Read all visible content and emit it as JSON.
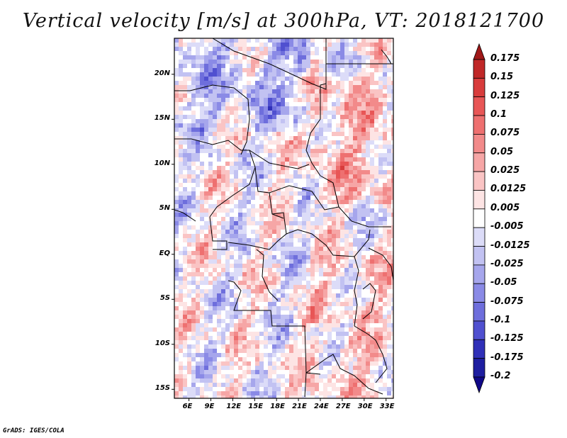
{
  "title": "Vertical velocity [m/s] at 300hPa, VT: 2018121700",
  "map": {
    "lat_ticks": [
      "20N",
      "15N",
      "10N",
      "5N",
      "EQ",
      "5S",
      "10S",
      "15S"
    ],
    "lon_ticks": [
      "6E",
      "9E",
      "12E",
      "15E",
      "18E",
      "21E",
      "24E",
      "27E",
      "30E",
      "33E"
    ],
    "extent": {
      "lon_min": 4,
      "lon_max": 34,
      "lat_min": -16,
      "lat_max": 24
    },
    "field": "vertical velocity",
    "units": "m/s",
    "level": "300hPa"
  },
  "colorbar": {
    "labels": [
      "0.175",
      "0.15",
      "0.125",
      "0.1",
      "0.075",
      "0.05",
      "0.025",
      "0.0125",
      "0.005",
      "-0.005",
      "-0.0125",
      "-0.025",
      "-0.05",
      "-0.075",
      "-0.1",
      "-0.125",
      "-0.175",
      "-0.2"
    ],
    "colors": [
      "#a01818",
      "#c02828",
      "#d83c3c",
      "#e85656",
      "#ee7070",
      "#f28a8a",
      "#f6a6a6",
      "#fac4c4",
      "#fde4e4",
      "#ffffff",
      "#dcdcf8",
      "#c2c2f2",
      "#a6a6ec",
      "#8a8ae6",
      "#6e6edc",
      "#5050d0",
      "#3030b8",
      "#1e1ea0",
      "#100888"
    ]
  },
  "credit": "GrADS: IGES/COLA"
}
